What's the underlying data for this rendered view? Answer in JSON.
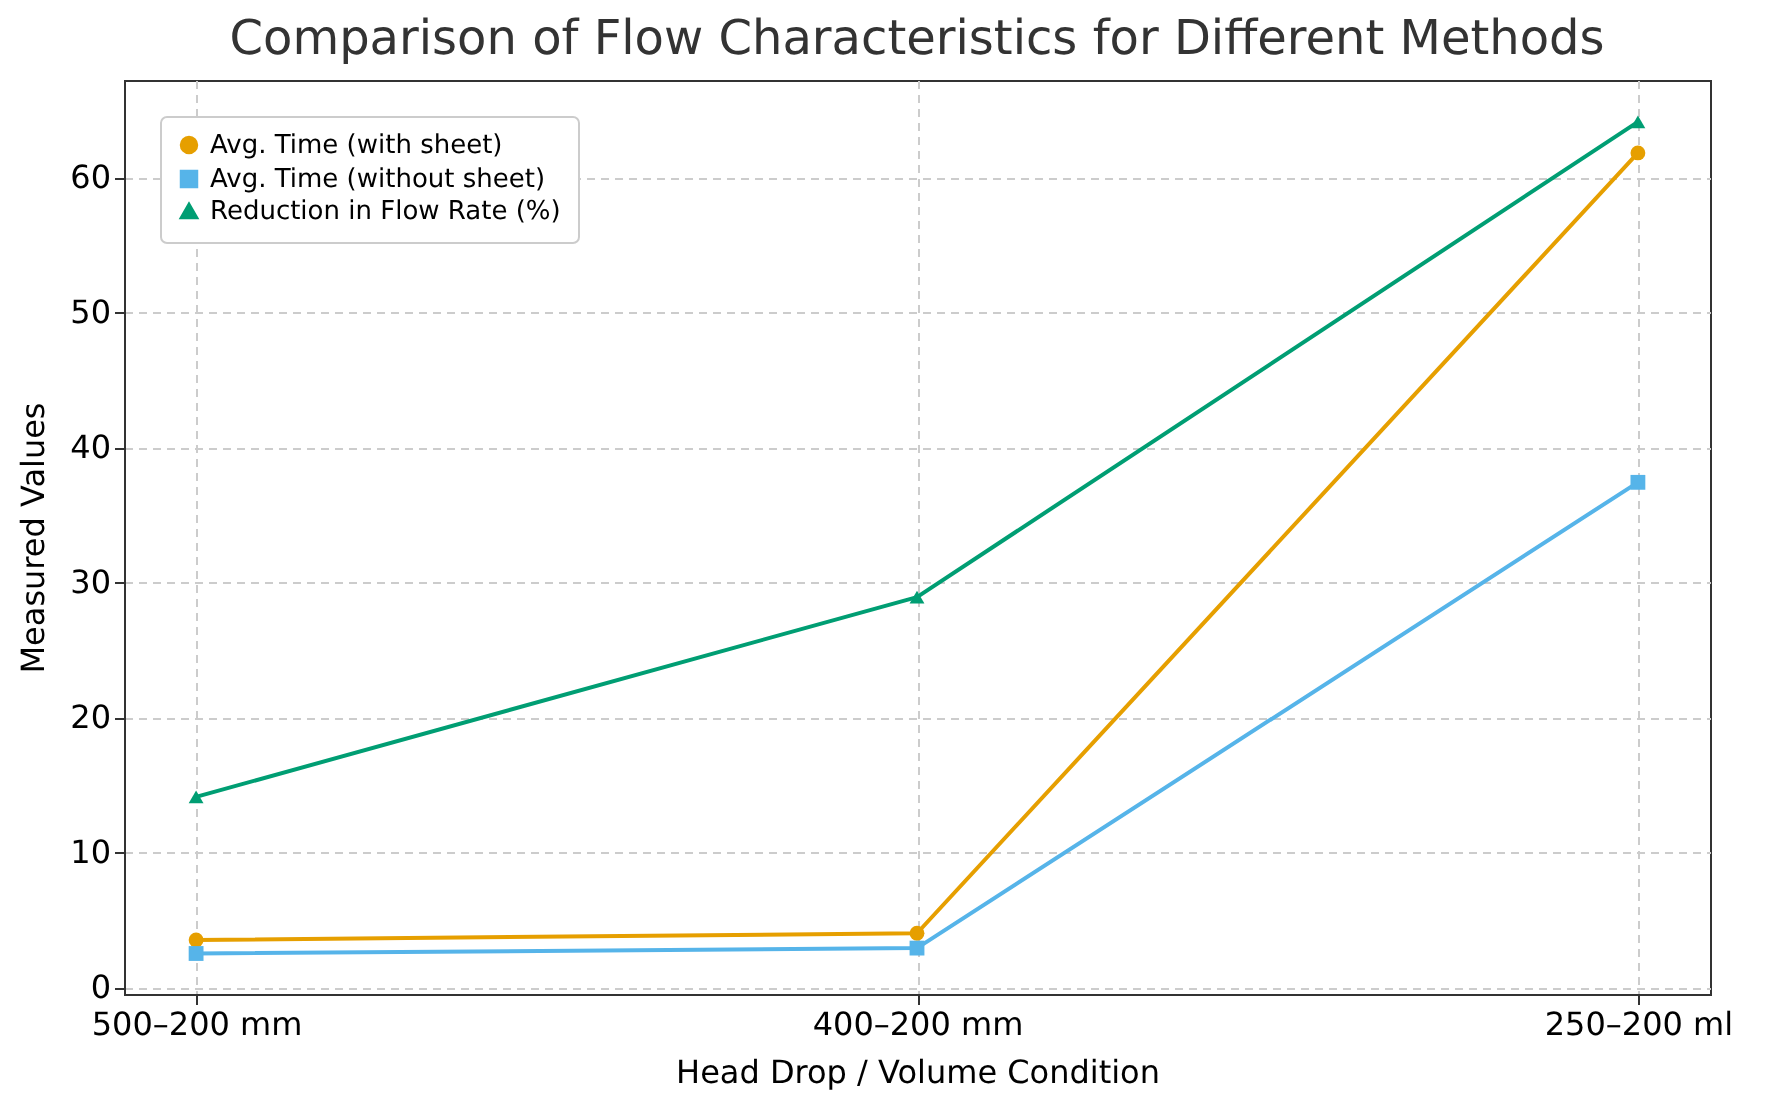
{
  "chart_data": {
    "type": "line",
    "title": "Comparison of Flow Characteristics for Different Methods",
    "xlabel": "Head Drop / Volume Condition",
    "ylabel": "Measured Values",
    "categories": [
      "500–200 mm",
      "400–200 mm",
      "250–200 ml"
    ],
    "series": [
      {
        "name": "Avg. Time (with sheet)",
        "color": "#e69f00",
        "marker": "circle",
        "values": [
          3.5,
          4.0,
          61.8
        ]
      },
      {
        "name": "Avg. Time (without sheet)",
        "color": "#56b4e9",
        "marker": "square",
        "values": [
          2.5,
          2.9,
          37.4
        ]
      },
      {
        "name": "Reduction in Flow Rate (%)",
        "color": "#009e73",
        "marker": "triangle",
        "values": [
          14.1,
          28.9,
          64.1
        ]
      }
    ],
    "ylim": [
      -0.5,
      67.2
    ],
    "yticks": [
      0,
      10,
      20,
      30,
      40,
      50,
      60
    ],
    "grid": true,
    "legend": "top left",
    "line_style": "solid"
  }
}
